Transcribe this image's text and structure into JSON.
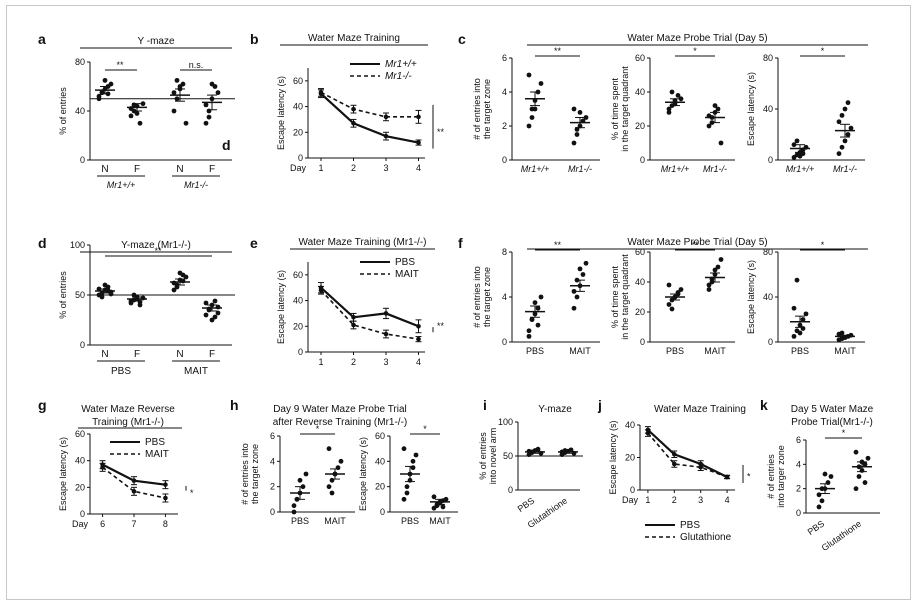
{
  "panels": [
    {
      "id": "a",
      "letter": "a",
      "title": "Y -maze",
      "ylabel": "% of entries",
      "ylim": [
        0,
        80
      ],
      "yticks": [
        0,
        40,
        80
      ],
      "hline": 50,
      "stars": [
        "**",
        "n.s."
      ],
      "extra_letter": "d",
      "groups": [
        {
          "label": "Mr1+/+",
          "ticks": [
            "N",
            "F"
          ]
        },
        {
          "label": "Mr1-/-",
          "ticks": [
            "N",
            "F"
          ]
        }
      ],
      "chart_data": {
        "type": "scatter",
        "categories": [
          "Mr1+/+ N",
          "Mr1+/+ F",
          "Mr1-/- N",
          "Mr1-/- F"
        ],
        "means": [
          57,
          43,
          53,
          47
        ],
        "sem": [
          3,
          3,
          5,
          6
        ],
        "points": [
          [
            50,
            55,
            58,
            60,
            62,
            52,
            55,
            65,
            54
          ],
          [
            36,
            40,
            44,
            30,
            46,
            42,
            45,
            38
          ],
          [
            40,
            50,
            58,
            62,
            30,
            55,
            65,
            60
          ],
          [
            30,
            40,
            50,
            60,
            55,
            45,
            35,
            62
          ]
        ]
      }
    },
    {
      "id": "b",
      "letter": "b",
      "title": "Water Maze Training",
      "ylabel": "Escape latency (s)",
      "xlabel": "Day",
      "ylim": [
        0,
        70
      ],
      "yticks": [
        0,
        20,
        40,
        60
      ],
      "sig": "**",
      "chart_data": {
        "type": "line",
        "x": [
          1,
          2,
          3,
          4
        ],
        "series": [
          {
            "name": "Mr1+/+",
            "values": [
              50,
              27,
              17,
              12
            ],
            "sem": [
              3,
              3,
              3,
              2
            ]
          },
          {
            "name": "Mr1-/-",
            "values": [
              51,
              38,
              32,
              32
            ],
            "sem": [
              3,
              3,
              3,
              5
            ]
          }
        ]
      }
    },
    {
      "id": "c",
      "letter": "c",
      "title": "Water Maze Probe Trial (Day 5)",
      "subplots": [
        {
          "ylabel": "# of entries into the target zone",
          "ylim": [
            0,
            6
          ],
          "yticks": [
            0,
            2,
            4,
            6
          ],
          "sig": "**",
          "chart_data": {
            "type": "scatter",
            "categories": [
              "Mr1+/+",
              "Mr1-/-"
            ],
            "means": [
              3.6,
              2.2
            ],
            "sem": [
              0.4,
              0.3
            ],
            "points": [
              [
                2,
                3,
                3.5,
                4,
                4.5,
                5,
                2.5,
                3
              ],
              [
                1,
                1.5,
                2,
                2.3,
                2.5,
                3,
                1.8,
                2.8
              ]
            ]
          }
        },
        {
          "ylabel": "% of time spent in the target quadrant",
          "ylim": [
            0,
            60
          ],
          "yticks": [
            0,
            20,
            40,
            60
          ],
          "sig": "*",
          "chart_data": {
            "type": "scatter",
            "categories": [
              "Mr1+/+",
              "Mr1-/-"
            ],
            "means": [
              34,
              25
            ],
            "sem": [
              2,
              3
            ],
            "points": [
              [
                30,
                32,
                35,
                38,
                36,
                28,
                40,
                33
              ],
              [
                20,
                25,
                28,
                30,
                10,
                26,
                22,
                32
              ]
            ]
          }
        },
        {
          "ylabel": "Escape latency (s)",
          "ylim": [
            0,
            80
          ],
          "yticks": [
            0,
            40,
            80
          ],
          "sig": "*",
          "chart_data": {
            "type": "scatter",
            "categories": [
              "Mr1+/+",
              "Mr1-/-"
            ],
            "means": [
              9,
              23
            ],
            "sem": [
              3,
              5
            ],
            "points": [
              [
                2,
                4,
                6,
                8,
                10,
                12,
                15,
                3,
                5
              ],
              [
                5,
                10,
                15,
                20,
                25,
                30,
                35,
                40,
                45
              ]
            ]
          }
        }
      ]
    },
    {
      "id": "d",
      "letter": "d",
      "title": "Y-maze (Mr1-/-)",
      "ylabel": "% of entries",
      "ylim": [
        0,
        100
      ],
      "yticks": [
        0,
        50,
        100
      ],
      "hline": 50,
      "stars": [
        "**"
      ],
      "groups": [
        {
          "label": "PBS",
          "ticks": [
            "N",
            "F"
          ]
        },
        {
          "label": "MAIT",
          "ticks": [
            "N",
            "F"
          ]
        }
      ],
      "chart_data": {
        "type": "scatter",
        "categories": [
          "PBS N",
          "PBS F",
          "MAIT N",
          "MAIT F"
        ],
        "means": [
          54,
          46,
          63,
          37
        ],
        "sem": [
          2,
          2,
          3,
          3
        ],
        "points": [
          [
            50,
            52,
            55,
            58,
            53,
            56,
            48,
            60,
            54,
            51
          ],
          [
            42,
            45,
            48,
            40,
            47,
            44,
            50,
            46,
            43
          ],
          [
            55,
            60,
            65,
            70,
            68,
            62,
            58,
            72,
            64
          ],
          [
            30,
            35,
            40,
            28,
            38,
            42,
            36,
            25,
            44,
            32
          ]
        ]
      }
    },
    {
      "id": "e",
      "letter": "e",
      "title": "Water Maze Training (Mr1-/-)",
      "ylabel": "Escape latency (s)",
      "xlabel": "",
      "ylim": [
        0,
        70
      ],
      "yticks": [
        0,
        20,
        40,
        60
      ],
      "sig": "**",
      "chart_data": {
        "type": "line",
        "x": [
          1,
          2,
          3,
          4
        ],
        "series": [
          {
            "name": "PBS",
            "values": [
              50,
              27,
              30,
              20
            ],
            "sem": [
              4,
              3,
              4,
              5
            ]
          },
          {
            "name": "MAIT",
            "values": [
              48,
              21,
              14,
              10
            ],
            "sem": [
              3,
              3,
              3,
              2
            ]
          }
        ]
      }
    },
    {
      "id": "f",
      "letter": "f",
      "title": "Water Maze Probe Trial (Day 5)",
      "subplots": [
        {
          "ylabel": "# of entries into the target zone",
          "ylim": [
            0,
            8
          ],
          "yticks": [
            0,
            4,
            8
          ],
          "sig": "**",
          "chart_data": {
            "type": "scatter",
            "categories": [
              "PBS",
              "MAIT"
            ],
            "means": [
              2.7,
              5
            ],
            "sem": [
              0.5,
              0.5
            ],
            "points": [
              [
                1,
                2,
                2.5,
                3,
                4,
                0.5,
                2,
                3.5,
                1.5
              ],
              [
                3,
                4,
                5,
                6,
                7,
                4.5,
                5.5,
                6.5
              ]
            ]
          }
        },
        {
          "ylabel": "% of time spent in the target quadrant",
          "ylim": [
            0,
            60
          ],
          "yticks": [
            0,
            20,
            40,
            60
          ],
          "sig": "**",
          "chart_data": {
            "type": "scatter",
            "categories": [
              "PBS",
              "MAIT"
            ],
            "means": [
              30,
              43
            ],
            "sem": [
              2,
              3
            ],
            "points": [
              [
                25,
                28,
                30,
                32,
                35,
                38,
                22,
                30,
                33
              ],
              [
                35,
                40,
                45,
                50,
                55,
                38,
                42,
                48
              ]
            ]
          }
        },
        {
          "ylabel": "Escape latency (s)",
          "ylim": [
            0,
            80
          ],
          "yticks": [
            0,
            40,
            80
          ],
          "sig": "*",
          "chart_data": {
            "type": "scatter",
            "categories": [
              "PBS",
              "MAIT"
            ],
            "means": [
              18,
              5
            ],
            "sem": [
              5,
              1
            ],
            "points": [
              [
                5,
                10,
                15,
                20,
                25,
                30,
                55,
                8,
                12
              ],
              [
                2,
                3,
                4,
                5,
                6,
                7,
                8,
                4
              ]
            ]
          }
        }
      ]
    },
    {
      "id": "g",
      "letter": "g",
      "title": "Water Maze Reverse Training (Mr1-/-)",
      "ylabel": "Escape latency (s)",
      "xlabel": "Day",
      "ylim": [
        0,
        60
      ],
      "yticks": [
        0,
        20,
        40,
        60
      ],
      "sig": "*",
      "chart_data": {
        "type": "line",
        "x": [
          6,
          7,
          8
        ],
        "series": [
          {
            "name": "PBS",
            "values": [
              37,
              25,
              22
            ],
            "sem": [
              3,
              3,
              3
            ]
          },
          {
            "name": "MAIT",
            "values": [
              35,
              17,
              12
            ],
            "sem": [
              3,
              3,
              3
            ]
          }
        ]
      }
    },
    {
      "id": "h",
      "letter": "h",
      "title": "Day 9 Water Maze Probe Trial after Reverse Training (Mr1-/-)",
      "subplots": [
        {
          "ylabel": "# of entries into the target zone",
          "ylim": [
            0,
            6
          ],
          "yticks": [
            0,
            2,
            4,
            6
          ],
          "sig": "*",
          "chart_data": {
            "type": "scatter",
            "categories": [
              "PBS",
              "MAIT"
            ],
            "means": [
              1.5,
              3
            ],
            "sem": [
              0.5,
              0.4
            ],
            "points": [
              [
                0.5,
                1,
                1.5,
                2,
                3,
                0,
                1,
                2.5
              ],
              [
                2,
                2.5,
                3,
                3.5,
                4,
                5,
                1.5,
                3
              ]
            ]
          }
        },
        {
          "ylabel": "Escape latency (s)",
          "ylim": [
            0,
            60
          ],
          "yticks": [
            0,
            20,
            40,
            60
          ],
          "sig": "*",
          "chart_data": {
            "type": "scatter",
            "categories": [
              "PBS",
              "MAIT"
            ],
            "means": [
              30,
              8
            ],
            "sem": [
              6,
              2
            ],
            "points": [
              [
                10,
                20,
                30,
                40,
                45,
                50,
                15,
                25,
                35
              ],
              [
                3,
                5,
                7,
                9,
                10,
                12,
                6,
                8,
                4
              ]
            ]
          }
        }
      ]
    },
    {
      "id": "i",
      "letter": "i",
      "title": "Y-maze",
      "ylabel": "% of entries into novel arm",
      "ylim": [
        0,
        100
      ],
      "yticks": [
        0,
        50,
        100
      ],
      "hline": 50,
      "groups": [
        {
          "label": "PBS",
          "ticks": []
        },
        {
          "label": "Glutathione",
          "ticks": []
        }
      ],
      "chart_data": {
        "type": "scatter",
        "categories": [
          "PBS",
          "Glutathione"
        ],
        "means": [
          56,
          56
        ],
        "sem": [
          2,
          2
        ],
        "points": [
          [
            52,
            55,
            58,
            60,
            54,
            57,
            56
          ],
          [
            52,
            55,
            57,
            59,
            54,
            56,
            58
          ]
        ]
      }
    },
    {
      "id": "j",
      "letter": "j",
      "title": "Water Maze Training",
      "ylabel": "Escape latency (s)",
      "xlabel": "Day",
      "ylim": [
        0,
        40
      ],
      "yticks": [
        0,
        20,
        40
      ],
      "sig": "*",
      "chart_data": {
        "type": "line",
        "x": [
          1,
          2,
          3,
          4
        ],
        "series": [
          {
            "name": "PBS",
            "values": [
              37,
              22,
              16,
              8
            ],
            "sem": [
              2,
              2,
              2,
              1
            ]
          },
          {
            "name": "Glutathione",
            "values": [
              35,
              16,
              14,
              8
            ],
            "sem": [
              2,
              2,
              2,
              1
            ]
          }
        ]
      }
    },
    {
      "id": "k",
      "letter": "k",
      "title": "Day 5 Water Maze Probe Trial (Mr1-/-)",
      "ylabel": "# of entries into targer zone",
      "ylim": [
        0,
        6
      ],
      "yticks": [
        0,
        2,
        4,
        6
      ],
      "sig": "*",
      "chart_data": {
        "type": "scatter",
        "categories": [
          "PBS",
          "Glutathione"
        ],
        "means": [
          2,
          3.8
        ],
        "sem": [
          0.4,
          0.4
        ],
        "points": [
          [
            0.5,
            1,
            2,
            2.5,
            3,
            1.5,
            2,
            3.2
          ],
          [
            2,
            3,
            3.5,
            4,
            4.5,
            5,
            3.8,
            4.2,
            2.5
          ]
        ]
      }
    }
  ]
}
